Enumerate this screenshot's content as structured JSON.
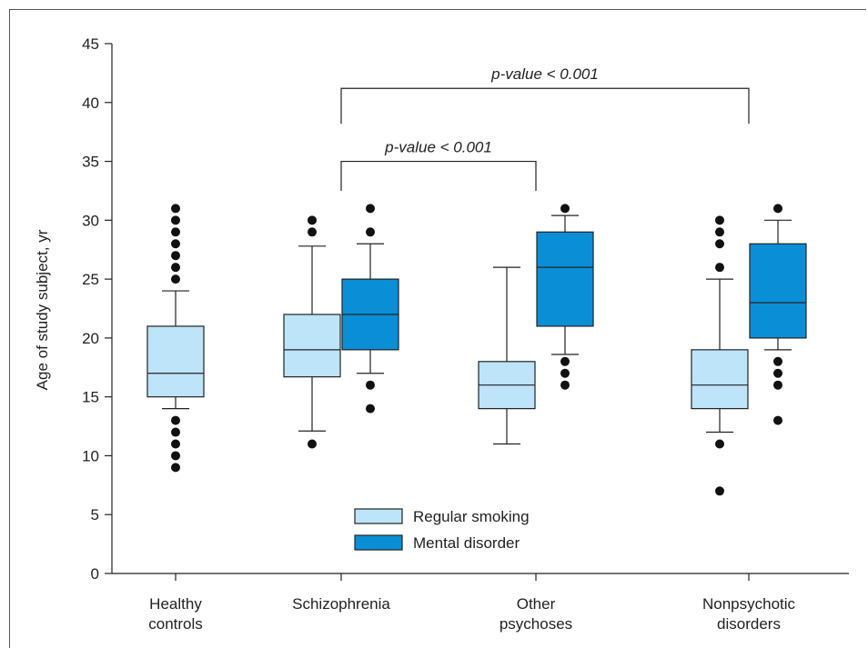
{
  "chart_data": {
    "type": "boxplot",
    "ylabel": "Age of study subject, yr",
    "ylim": [
      0,
      45
    ],
    "yticks": [
      0,
      5,
      10,
      15,
      20,
      25,
      30,
      35,
      40,
      45
    ],
    "categories": [
      [
        "Healthy",
        "controls"
      ],
      [
        "Schizophrenia"
      ],
      [
        "Other",
        "psychoses"
      ],
      [
        "Nonpsychotic",
        "disorders"
      ]
    ],
    "colors": {
      "regular_smoking": "#bde4f8",
      "mental_disorder": "#0a8fd6"
    },
    "legend": [
      {
        "key": "regular_smoking",
        "label": "Regular smoking"
      },
      {
        "key": "mental_disorder",
        "label": "Mental disorder"
      }
    ],
    "boxes": [
      {
        "category": 0,
        "series": "regular_smoking",
        "whisker_low": 14,
        "q1": 15,
        "median": 17,
        "q3": 21,
        "whisker_high": 24,
        "outliers": [
          9,
          10,
          11,
          12,
          13,
          25,
          26,
          27,
          28,
          29,
          30,
          31
        ]
      },
      {
        "category": 1,
        "series": "regular_smoking",
        "whisker_low": 12.1,
        "q1": 16.7,
        "median": 19,
        "q3": 22,
        "whisker_high": 27.8,
        "outliers": [
          11,
          29,
          30
        ]
      },
      {
        "category": 1,
        "series": "mental_disorder",
        "whisker_low": 17,
        "q1": 19,
        "median": 22,
        "q3": 25,
        "whisker_high": 28,
        "outliers": [
          14,
          16,
          29,
          31
        ]
      },
      {
        "category": 2,
        "series": "regular_smoking",
        "whisker_low": 11,
        "q1": 14,
        "median": 16,
        "q3": 18,
        "whisker_high": 26,
        "outliers": []
      },
      {
        "category": 2,
        "series": "mental_disorder",
        "whisker_low": 18.6,
        "q1": 21,
        "median": 26,
        "q3": 29,
        "whisker_high": 30.4,
        "outliers": [
          16,
          17,
          18,
          31
        ]
      },
      {
        "category": 3,
        "series": "regular_smoking",
        "whisker_low": 12,
        "q1": 14,
        "median": 16,
        "q3": 19,
        "whisker_high": 25,
        "outliers": [
          7,
          11,
          26,
          28,
          29,
          30
        ]
      },
      {
        "category": 3,
        "series": "mental_disorder",
        "whisker_low": 19,
        "q1": 20,
        "median": 23,
        "q3": 28,
        "whisker_high": 30,
        "outliers": [
          13,
          16,
          17,
          18,
          31
        ]
      }
    ],
    "annotations": [
      {
        "text": "p-value < 0.001",
        "from_category": 1,
        "to_category": 2,
        "bracket_y": 35,
        "leg_bottom": 32.5
      },
      {
        "text": "p-value < 0.001",
        "from_category": 1,
        "to_category": 3,
        "bracket_y": 41.2,
        "leg_bottom": 38.2
      }
    ],
    "grid": false,
    "legend_position": "bottom-center"
  }
}
